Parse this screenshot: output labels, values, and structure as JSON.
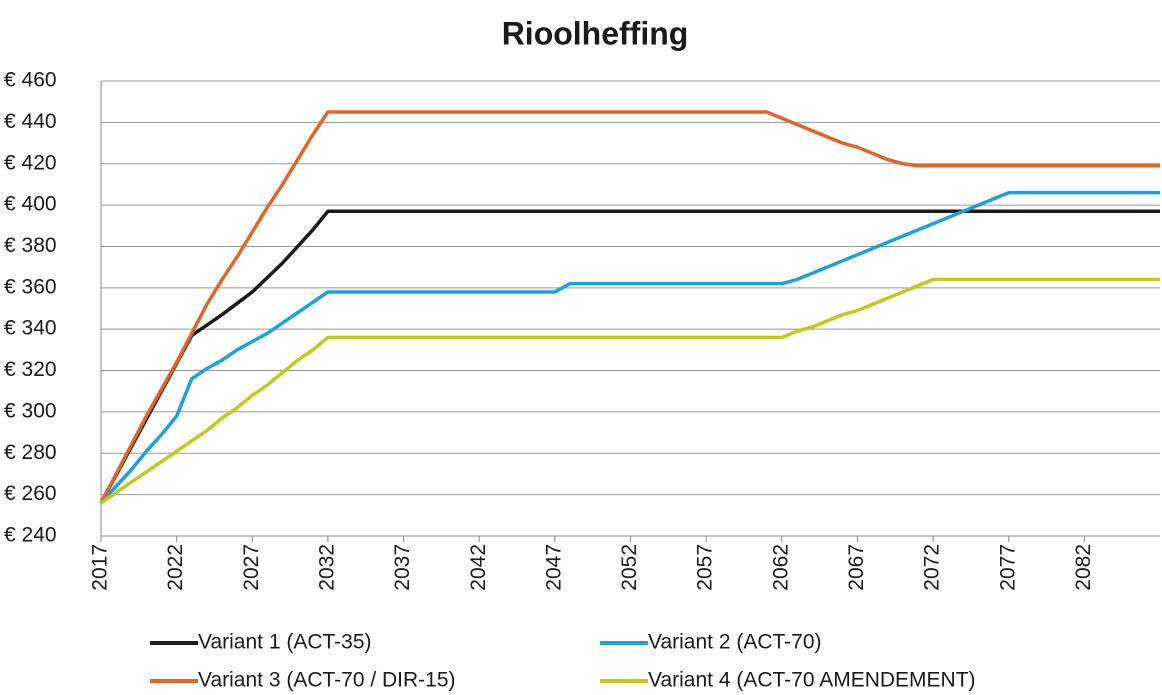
{
  "chart_data": {
    "type": "line",
    "title": "Rioolheffing",
    "x": [
      2017,
      2018,
      2019,
      2020,
      2021,
      2022,
      2023,
      2024,
      2025,
      2026,
      2027,
      2028,
      2029,
      2030,
      2031,
      2032,
      2033,
      2034,
      2035,
      2036,
      2037,
      2038,
      2039,
      2040,
      2041,
      2042,
      2043,
      2044,
      2045,
      2046,
      2047,
      2048,
      2049,
      2050,
      2051,
      2052,
      2053,
      2054,
      2055,
      2056,
      2057,
      2058,
      2059,
      2060,
      2061,
      2062,
      2063,
      2064,
      2065,
      2066,
      2067,
      2068,
      2069,
      2070,
      2071,
      2072,
      2073,
      2074,
      2075,
      2076,
      2077,
      2078,
      2079,
      2080,
      2081,
      2082,
      2083,
      2084,
      2085,
      2086,
      2087
    ],
    "series": [
      {
        "name": "Variant 1 (ACT-35)",
        "color": "#1a1a1a",
        "values": [
          256,
          269.5,
          283,
          296.5,
          310,
          323.5,
          337,
          342,
          347,
          352.5,
          358,
          365,
          372,
          380,
          388,
          397,
          397,
          397,
          397,
          397,
          397,
          397,
          397,
          397,
          397,
          397,
          397,
          397,
          397,
          397,
          397,
          397,
          397,
          397,
          397,
          397,
          397,
          397,
          397,
          397,
          397,
          397,
          397,
          397,
          397,
          397,
          397,
          397,
          397,
          397,
          397,
          397,
          397,
          397,
          397,
          397,
          397,
          397,
          397,
          397,
          397,
          397,
          397,
          397,
          397,
          397,
          397,
          397,
          397,
          397,
          397
        ]
      },
      {
        "name": "Variant 2 (ACT-70)",
        "color": "#1aa3d9",
        "values": [
          256,
          264,
          272,
          281,
          289,
          298,
          316,
          321,
          325,
          330,
          334,
          338,
          343,
          348,
          353,
          358,
          358,
          358,
          358,
          358,
          358,
          358,
          358,
          358,
          358,
          358,
          358,
          358,
          358,
          358,
          358,
          362,
          362,
          362,
          362,
          362,
          362,
          362,
          362,
          362,
          362,
          362,
          362,
          362,
          362,
          362,
          364,
          367,
          370,
          373,
          376,
          379,
          382,
          385,
          388,
          391,
          394,
          397,
          400,
          403,
          406,
          406,
          406,
          406,
          406,
          406,
          406,
          406,
          406,
          406,
          406
        ]
      },
      {
        "name": "Variant 3 (ACT-70 / DIR-15)",
        "color": "#e0652a",
        "values": [
          256,
          270,
          284,
          298,
          311,
          324,
          338,
          352,
          364,
          375,
          387,
          399,
          410,
          422,
          434,
          445,
          445,
          445,
          445,
          445,
          445,
          445,
          445,
          445,
          445,
          445,
          445,
          445,
          445,
          445,
          445,
          445,
          445,
          445,
          445,
          445,
          445,
          445,
          445,
          445,
          445,
          445,
          445,
          445,
          445,
          442,
          439,
          436,
          433,
          430,
          428,
          425,
          422,
          420,
          419,
          419,
          419,
          419,
          419,
          419,
          419,
          419,
          419,
          419,
          419,
          419,
          419,
          419,
          419,
          419,
          419
        ]
      },
      {
        "name": "Variant 4 (ACT-70 AMENDEMENT)",
        "color": "#bfcc1a",
        "values": [
          256,
          261,
          266,
          271,
          276,
          281,
          286,
          291,
          297,
          302,
          308,
          313,
          319,
          325,
          330,
          336,
          336,
          336,
          336,
          336,
          336,
          336,
          336,
          336,
          336,
          336,
          336,
          336,
          336,
          336,
          336,
          336,
          336,
          336,
          336,
          336,
          336,
          336,
          336,
          336,
          336,
          336,
          336,
          336,
          336,
          336,
          339,
          341,
          344,
          347,
          349,
          352,
          355,
          358,
          361,
          364,
          364,
          364,
          364,
          364,
          364,
          364,
          364,
          364,
          364,
          364,
          364,
          364,
          364,
          364,
          364
        ]
      }
    ],
    "xlim": [
      2017,
      2087
    ],
    "xticks": [
      2017,
      2022,
      2027,
      2032,
      2037,
      2042,
      2047,
      2052,
      2057,
      2062,
      2067,
      2072,
      2077,
      2082
    ],
    "ylim": [
      240,
      460
    ],
    "yticks": [
      {
        "value": 240,
        "label": "€ 240"
      },
      {
        "value": 260,
        "label": "€ 260"
      },
      {
        "value": 280,
        "label": "€ 280"
      },
      {
        "value": 300,
        "label": "€ 300"
      },
      {
        "value": 320,
        "label": "€ 320"
      },
      {
        "value": 340,
        "label": "€ 340"
      },
      {
        "value": 360,
        "label": "€ 360"
      },
      {
        "value": 380,
        "label": "€ 380"
      },
      {
        "value": 400,
        "label": "€ 400"
      },
      {
        "value": 420,
        "label": "€ 420"
      },
      {
        "value": 440,
        "label": "€ 440"
      },
      {
        "value": 460,
        "label": "€ 460"
      }
    ],
    "grid": true
  }
}
